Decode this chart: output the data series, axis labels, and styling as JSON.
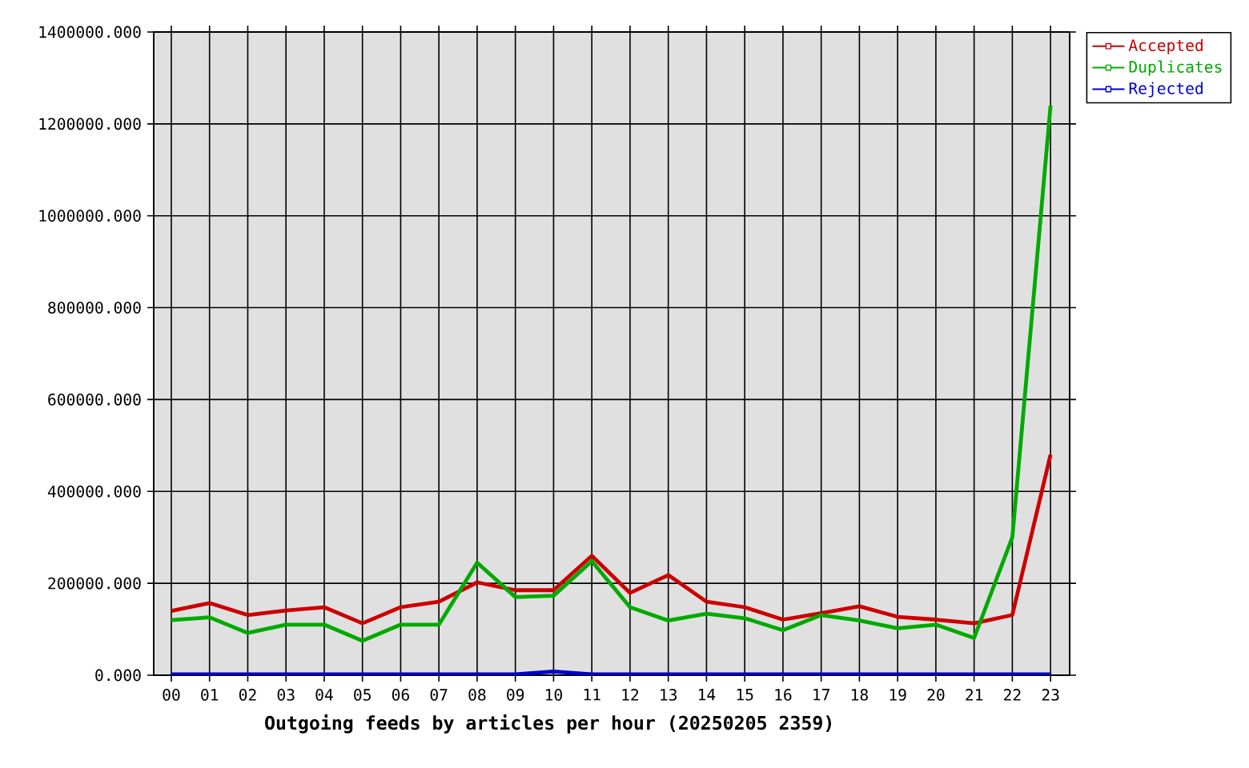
{
  "chart_data": {
    "type": "line",
    "xlabel": "Outgoing feeds by articles per hour (20250205 2359)",
    "categories": [
      "00",
      "01",
      "02",
      "03",
      "04",
      "05",
      "06",
      "07",
      "08",
      "09",
      "10",
      "11",
      "12",
      "13",
      "14",
      "15",
      "16",
      "17",
      "18",
      "19",
      "20",
      "21",
      "22",
      "23"
    ],
    "series": [
      {
        "name": "Accepted",
        "color": "#cc0000",
        "values": [
          140000,
          157000,
          131000,
          141000,
          148000,
          113000,
          148000,
          160000,
          202000,
          185000,
          185000,
          260000,
          179000,
          218000,
          160000,
          148000,
          121000,
          135000,
          150000,
          127000,
          121000,
          113000,
          131000,
          480000
        ]
      },
      {
        "name": "Duplicates",
        "color": "#00aa00",
        "values": [
          120000,
          126000,
          92000,
          110000,
          110000,
          75000,
          110000,
          110000,
          245000,
          170000,
          173000,
          248000,
          148000,
          119000,
          134000,
          124000,
          98000,
          131000,
          119000,
          102000,
          110000,
          81000,
          300000,
          1240000
        ]
      },
      {
        "name": "Rejected",
        "color": "#0000cc",
        "values": [
          2000,
          2000,
          2000,
          2000,
          2000,
          2000,
          2000,
          2000,
          2000,
          2000,
          8000,
          2000,
          2000,
          2000,
          2000,
          2000,
          2000,
          2000,
          2000,
          2000,
          2000,
          2000,
          2000,
          2000
        ]
      }
    ],
    "ylim": [
      0,
      1400000
    ],
    "yticks": [
      {
        "value": 0,
        "label": "0.000"
      },
      {
        "value": 200000,
        "label": "200000.000"
      },
      {
        "value": 400000,
        "label": "400000.000"
      },
      {
        "value": 600000,
        "label": "600000.000"
      },
      {
        "value": 800000,
        "label": "800000.000"
      },
      {
        "value": 1000000,
        "label": "1000000.000"
      },
      {
        "value": 1200000,
        "label": "1200000.000"
      },
      {
        "value": 1400000,
        "label": "1400000.000"
      }
    ],
    "grid": true,
    "legend": "top right"
  }
}
